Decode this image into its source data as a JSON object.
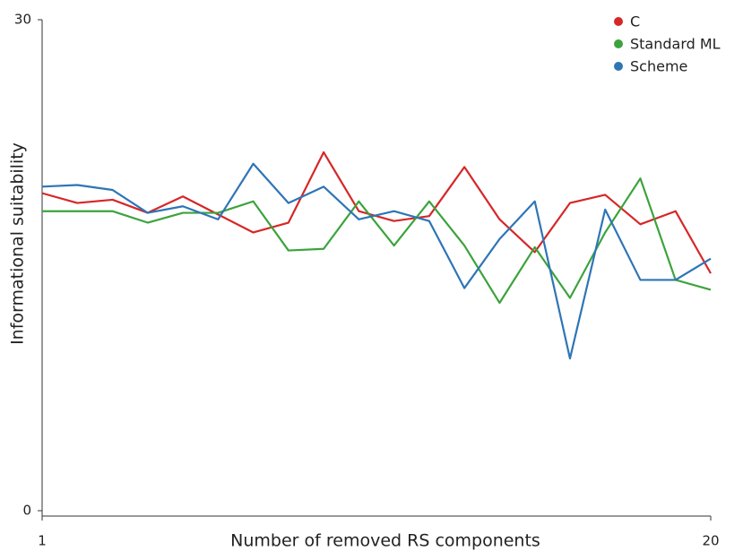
{
  "chart_data": {
    "type": "line",
    "x_label": "Number of removed RS components",
    "y_label": "Informational suitability",
    "x": [
      1,
      2,
      3,
      4,
      5,
      6,
      7,
      8,
      9,
      10,
      11,
      12,
      13,
      14,
      15,
      16,
      17,
      18,
      19,
      20
    ],
    "xlim": [
      1,
      20
    ],
    "xticks": [
      1,
      20
    ],
    "ylim": [
      0,
      30
    ],
    "yticks": [
      0,
      30
    ],
    "legend": "upper right",
    "series": [
      {
        "name": "C",
        "color": "#d62728",
        "values": [
          19.4,
          18.8,
          19.0,
          18.2,
          19.2,
          18.1,
          17.0,
          17.6,
          21.9,
          18.3,
          17.7,
          18.0,
          21.0,
          17.8,
          15.8,
          18.8,
          19.3,
          17.5,
          18.3,
          14.5
        ]
      },
      {
        "name": "Standard ML",
        "color": "#3ca33c",
        "values": [
          18.3,
          18.3,
          18.3,
          17.6,
          18.2,
          18.2,
          18.9,
          15.9,
          16.0,
          18.9,
          16.2,
          18.9,
          16.2,
          12.7,
          16.1,
          13.0,
          17.0,
          20.3,
          14.1,
          13.5
        ]
      },
      {
        "name": "Scheme",
        "color": "#2e75b6",
        "values": [
          19.8,
          19.9,
          19.6,
          18.2,
          18.6,
          17.8,
          21.2,
          18.8,
          19.8,
          17.8,
          18.3,
          17.7,
          13.6,
          16.6,
          18.9,
          9.3,
          18.4,
          14.1,
          14.1,
          15.4
        ]
      }
    ]
  }
}
